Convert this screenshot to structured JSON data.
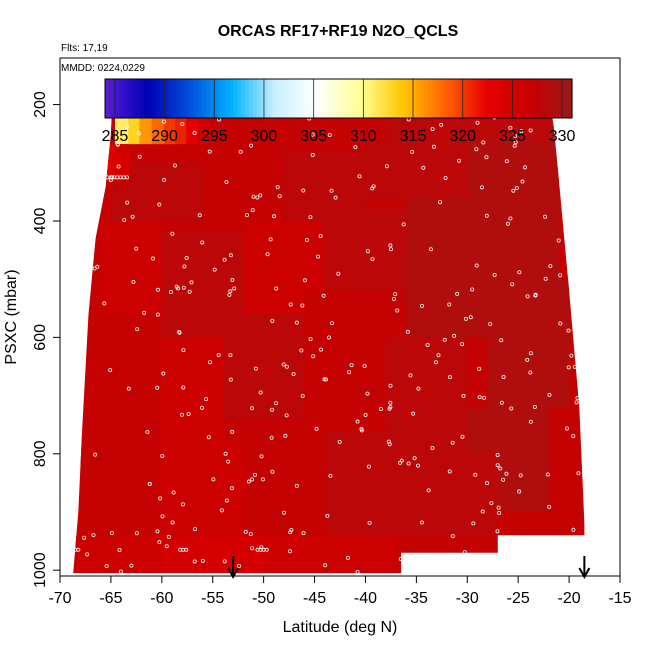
{
  "chart_data": {
    "type": "heatmap",
    "title": "ORCAS RF17+RF19 N2O_QCLS",
    "flights_note": "Flts: 17,19",
    "date_note": "MMDD: 0224,0229",
    "xlabel": "Latitude (deg N)",
    "ylabel": "PSXC (mbar)",
    "xlim": [
      -70,
      -15
    ],
    "ylim": [
      1010,
      120
    ],
    "y_inverted": true,
    "x_ticks": [
      -70,
      -65,
      -60,
      -55,
      -50,
      -45,
      -40,
      -35,
      -30,
      -25,
      -20,
      -15
    ],
    "y_ticks": [
      200,
      400,
      600,
      800,
      1000
    ],
    "colorbar": {
      "range": [
        284,
        331
      ],
      "ticks": [
        285,
        290,
        295,
        300,
        305,
        310,
        315,
        320,
        325,
        330
      ],
      "colors": [
        "#5a1ed6",
        "#0000b4",
        "#0050dc",
        "#00b4ff",
        "#c8f0ff",
        "#ffffff",
        "#ffff96",
        "#ffc800",
        "#ff6400",
        "#e60000",
        "#c80000",
        "#9b1818"
      ]
    },
    "arrows_latitude": [
      -53,
      -18.5
    ],
    "field": {
      "background_value": 327,
      "outline": [
        [
          -64.8,
          175
        ],
        [
          -22,
          175
        ],
        [
          -21.5,
          240
        ],
        [
          -21,
          330
        ],
        [
          -20,
          520
        ],
        [
          -19,
          720
        ],
        [
          -18.5,
          920
        ],
        [
          -18.5,
          940
        ],
        [
          -27,
          940
        ],
        [
          -27,
          970
        ],
        [
          -36.5,
          970
        ],
        [
          -36.5,
          1005
        ],
        [
          -68.7,
          1005
        ],
        [
          -68.2,
          900
        ],
        [
          -67.8,
          750
        ],
        [
          -67.2,
          560
        ],
        [
          -66.5,
          430
        ],
        [
          -65.5,
          340
        ],
        [
          -65,
          250
        ],
        [
          -64.8,
          175
        ]
      ],
      "patches": [
        {
          "lat": [
            -62,
            -57
          ],
          "p": [
            175,
            220
          ],
          "value": 326
        },
        {
          "lat": [
            -57,
            -53
          ],
          "p": [
            175,
            220
          ],
          "value": 326
        },
        {
          "lat": [
            -50,
            -38
          ],
          "p": [
            175,
            225
          ],
          "value": 325
        },
        {
          "lat": [
            -38,
            -22
          ],
          "p": [
            175,
            225
          ],
          "value": 327
        },
        {
          "lat": [
            -65,
            -56
          ],
          "p": [
            300,
            400
          ],
          "value": 328
        },
        {
          "lat": [
            -56,
            -48
          ],
          "p": [
            260,
            380
          ],
          "value": 327
        },
        {
          "lat": [
            -48,
            -40
          ],
          "p": [
            280,
            400
          ],
          "value": 328
        },
        {
          "lat": [
            -40,
            -30
          ],
          "p": [
            250,
            360
          ],
          "value": 328
        },
        {
          "lat": [
            -30,
            -21
          ],
          "p": [
            230,
            500
          ],
          "value": 329
        },
        {
          "lat": [
            -66,
            -60
          ],
          "p": [
            400,
            560
          ],
          "value": 326
        },
        {
          "lat": [
            -60,
            -52
          ],
          "p": [
            420,
            600
          ],
          "value": 328
        },
        {
          "lat": [
            -52,
            -44
          ],
          "p": [
            400,
            560
          ],
          "value": 326
        },
        {
          "lat": [
            -44,
            -36
          ],
          "p": [
            380,
            520
          ],
          "value": 328
        },
        {
          "lat": [
            -36,
            -28
          ],
          "p": [
            360,
            600
          ],
          "value": 329
        },
        {
          "lat": [
            -28,
            -20
          ],
          "p": [
            500,
            720
          ],
          "value": 329
        },
        {
          "lat": [
            -67,
            -60
          ],
          "p": [
            560,
            760
          ],
          "value": 327
        },
        {
          "lat": [
            -60,
            -54
          ],
          "p": [
            600,
            780
          ],
          "value": 326
        },
        {
          "lat": [
            -54,
            -46
          ],
          "p": [
            560,
            740
          ],
          "value": 328
        },
        {
          "lat": [
            -46,
            -38
          ],
          "p": [
            520,
            760
          ],
          "value": 327
        },
        {
          "lat": [
            -38,
            -30
          ],
          "p": [
            600,
            800
          ],
          "value": 328
        },
        {
          "lat": [
            -30,
            -22
          ],
          "p": [
            720,
            900
          ],
          "value": 329
        },
        {
          "lat": [
            -68,
            -60
          ],
          "p": [
            760,
            960
          ],
          "value": 327
        },
        {
          "lat": [
            -60,
            -52
          ],
          "p": [
            780,
            940
          ],
          "value": 326
        },
        {
          "lat": [
            -52,
            -44
          ],
          "p": [
            740,
            900
          ],
          "value": 327
        },
        {
          "lat": [
            -44,
            -37
          ],
          "p": [
            760,
            960
          ],
          "value": 328
        },
        {
          "lat": [
            -37,
            -27
          ],
          "p": [
            800,
            940
          ],
          "value": 328
        },
        {
          "lat": [
            -68.5,
            -60
          ],
          "p": [
            940,
            1005
          ],
          "value": 326
        },
        {
          "lat": [
            -60,
            -50
          ],
          "p": [
            940,
            1005
          ],
          "value": 325
        },
        {
          "lat": [
            -50,
            -37
          ],
          "p": [
            940,
            1005
          ],
          "value": 326
        },
        {
          "lat": [
            -65,
            -57
          ],
          "p": [
            238,
            285
          ],
          "value": 327
        },
        {
          "lat": [
            -57,
            -51
          ],
          "p": [
            230,
            270
          ],
          "value": 327
        },
        {
          "lat": [
            -50,
            -38
          ],
          "p": [
            225,
            262
          ],
          "value": 327
        },
        {
          "lat": [
            -38,
            -22
          ],
          "p": [
            225,
            262
          ],
          "value": 328
        },
        {
          "lat": [
            -66.3,
            -63
          ],
          "p": [
            285,
            340
          ],
          "value": 327
        }
      ],
      "top_strip": {
        "p": [
          175,
          222
        ],
        "columns": [
          {
            "lat": -62.9,
            "value": 302
          },
          {
            "lat": -62.0,
            "value": 304
          },
          {
            "lat": -61.2,
            "value": 299
          },
          {
            "lat": -60.4,
            "value": 302
          },
          {
            "lat": -59.6,
            "value": 297
          },
          {
            "lat": -58.8,
            "value": 301
          },
          {
            "lat": -58.0,
            "value": 303
          },
          {
            "lat": -57.2,
            "value": 298
          },
          {
            "lat": -56.4,
            "value": 304
          },
          {
            "lat": -55.6,
            "value": 300
          },
          {
            "lat": -54.8,
            "value": 306
          },
          {
            "lat": -54.2,
            "value": 313
          },
          {
            "lat": -53.6,
            "value": 318
          },
          {
            "lat": -53.0,
            "value": 321
          },
          {
            "lat": -52.4,
            "value": 323
          },
          {
            "lat": -51.6,
            "value": 325
          }
        ]
      },
      "second_strip": {
        "p": [
          222,
          268
        ],
        "columns": [
          {
            "lat": -63.8,
            "value": 311
          },
          {
            "lat": -62.8,
            "value": 313
          },
          {
            "lat": -61.6,
            "value": 316
          },
          {
            "lat": -60.4,
            "value": 318
          },
          {
            "lat": -59.2,
            "value": 320
          },
          {
            "lat": -58.2,
            "value": 321
          },
          {
            "lat": -57.0,
            "value": 323
          },
          {
            "lat": -56.0,
            "value": 325
          }
        ]
      },
      "third_strip": {
        "p": [
          268,
          330
        ],
        "columns": [
          {
            "lat": -65.8,
            "value": 321
          },
          {
            "lat": -65.2,
            "value": 323
          },
          {
            "lat": -64.6,
            "value": 324
          },
          {
            "lat": -63.8,
            "value": 325
          }
        ]
      }
    },
    "points": {
      "seed": 17,
      "count": 330,
      "strip_top_p": 188,
      "strip_top_lat": [
        [
          -62.2,
          -57.8
        ],
        [
          -57.2,
          -55.8
        ],
        [
          -50.0,
          -47.0
        ],
        [
          -38.5,
          -37.5
        ],
        [
          -35.5,
          -30.5
        ],
        [
          -29.5,
          -26.0
        ],
        [
          -25.0,
          -21.5
        ]
      ],
      "strip_low_p": 325,
      "strip_low_lat": [
        [
          -66.3,
          -63.2
        ]
      ],
      "bottom_p": 965,
      "bottom_lat": [
        [
          -68.8,
          -68.2
        ],
        [
          -58.2,
          -57.5
        ],
        [
          -50.6,
          -49.5
        ]
      ]
    }
  }
}
